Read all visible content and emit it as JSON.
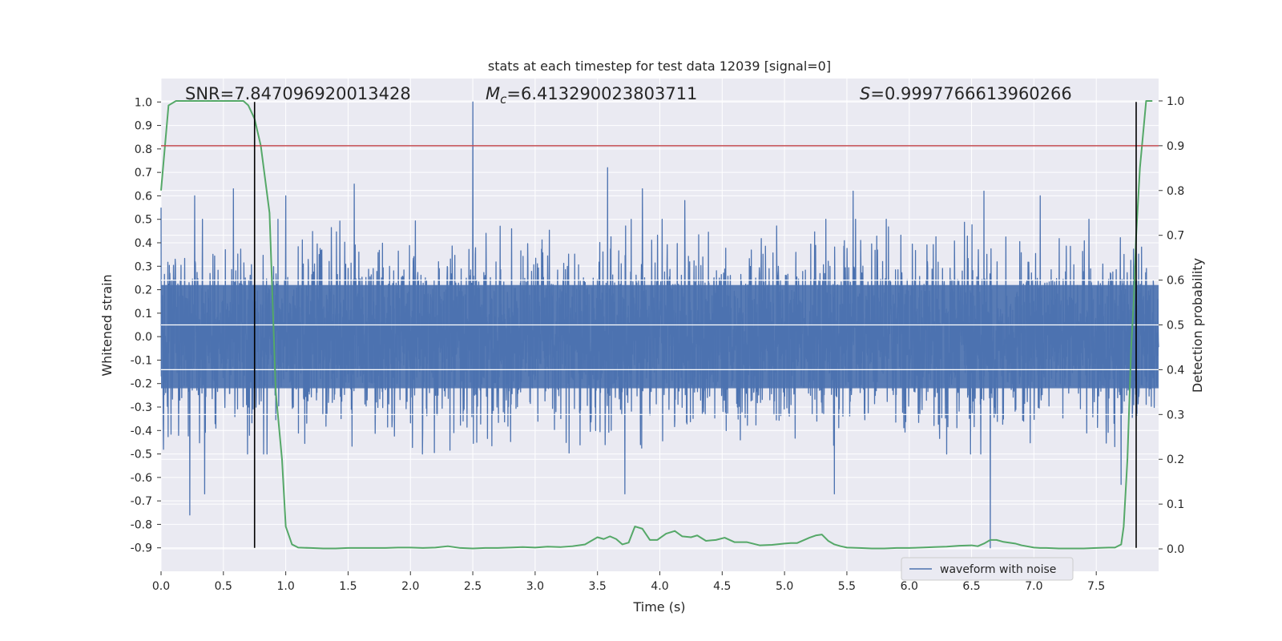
{
  "chart_data": {
    "type": "line",
    "title": "stats at each timestep for test data 12039 [signal=0]",
    "xlabel": "Time (s)",
    "ylabel": "Whitened strain",
    "y2label": "Detection probability",
    "xlim": [
      0.0,
      8.0
    ],
    "ylim": [
      -1.0,
      1.1
    ],
    "y2lim": [
      -0.05,
      1.05
    ],
    "xticks": [
      "0.0",
      "0.5",
      "1.0",
      "1.5",
      "2.0",
      "2.5",
      "3.0",
      "3.5",
      "4.0",
      "4.5",
      "5.0",
      "5.5",
      "6.0",
      "6.5",
      "7.0",
      "7.5"
    ],
    "yticks": [
      "-0.9",
      "-0.8",
      "-0.7",
      "-0.6",
      "-0.5",
      "-0.4",
      "-0.3",
      "-0.2",
      "-0.1",
      "0.0",
      "0.1",
      "0.2",
      "0.3",
      "0.4",
      "0.5",
      "0.6",
      "0.7",
      "0.8",
      "0.9",
      "1.0"
    ],
    "y2ticks": [
      "0.0",
      "0.1",
      "0.2",
      "0.3",
      "0.4",
      "0.5",
      "0.6",
      "0.7",
      "0.8",
      "0.9",
      "1.0"
    ],
    "grid": true,
    "legend_location": "lower-right",
    "annotations": {
      "snr": "SNR=7.847096920013428",
      "mc_symbol": "M",
      "mc_sub": "c",
      "mc_value": "=6.413290023803711",
      "s_symbol": "S",
      "s_value": "=0.9997766613960266"
    },
    "threshold_y2": 0.9,
    "vertical_lines_x": [
      0.75,
      7.82
    ],
    "series": [
      {
        "name": "waveform with noise",
        "axis": "left",
        "color": "#4c72b0",
        "kind": "noise",
        "n_samples": 4096,
        "core_amplitude": 0.22,
        "typical_extreme": 0.45,
        "peaks": [
          {
            "x": 0.0,
            "y": 0.55
          },
          {
            "x": 0.02,
            "y": -0.48
          },
          {
            "x": 0.23,
            "y": -0.76
          },
          {
            "x": 0.27,
            "y": 0.6
          },
          {
            "x": 0.35,
            "y": -0.67
          },
          {
            "x": 0.58,
            "y": 0.63
          },
          {
            "x": 1.0,
            "y": 0.6
          },
          {
            "x": 1.55,
            "y": 0.65
          },
          {
            "x": 2.5,
            "y": 1.0
          },
          {
            "x": 3.58,
            "y": 0.72
          },
          {
            "x": 3.72,
            "y": -0.67
          },
          {
            "x": 3.86,
            "y": 0.63
          },
          {
            "x": 4.2,
            "y": 0.58
          },
          {
            "x": 5.4,
            "y": -0.67
          },
          {
            "x": 5.55,
            "y": 0.62
          },
          {
            "x": 6.6,
            "y": 0.62
          },
          {
            "x": 6.65,
            "y": -0.9
          },
          {
            "x": 7.05,
            "y": 0.6
          },
          {
            "x": 7.7,
            "y": -0.63
          }
        ]
      },
      {
        "name": "detection probability",
        "axis": "right",
        "color": "#55a868",
        "x": [
          0.0,
          0.06,
          0.12,
          0.2,
          0.3,
          0.4,
          0.5,
          0.6,
          0.66,
          0.7,
          0.75,
          0.8,
          0.87,
          0.92,
          0.97,
          1.0,
          1.05,
          1.1,
          1.2,
          1.3,
          1.4,
          1.5,
          1.6,
          1.7,
          1.8,
          1.9,
          2.0,
          2.1,
          2.2,
          2.3,
          2.4,
          2.5,
          2.6,
          2.7,
          2.8,
          2.9,
          3.0,
          3.1,
          3.2,
          3.3,
          3.4,
          3.45,
          3.5,
          3.55,
          3.6,
          3.65,
          3.7,
          3.75,
          3.8,
          3.86,
          3.92,
          3.98,
          4.05,
          4.12,
          4.18,
          4.25,
          4.3,
          4.37,
          4.45,
          4.52,
          4.6,
          4.7,
          4.8,
          4.9,
          5.0,
          5.05,
          5.1,
          5.2,
          5.25,
          5.3,
          5.35,
          5.4,
          5.45,
          5.5,
          5.6,
          5.7,
          5.8,
          5.9,
          6.0,
          6.1,
          6.2,
          6.3,
          6.4,
          6.5,
          6.55,
          6.6,
          6.65,
          6.7,
          6.75,
          6.8,
          6.85,
          6.9,
          7.0,
          7.05,
          7.1,
          7.2,
          7.3,
          7.4,
          7.5,
          7.6,
          7.65,
          7.7,
          7.72,
          7.75,
          7.78,
          7.8,
          7.82,
          7.85,
          7.9,
          7.95
        ],
        "values": [
          0.8,
          0.99,
          1.0,
          1.0,
          1.0,
          1.0,
          1.0,
          1.0,
          1.0,
          0.99,
          0.96,
          0.9,
          0.75,
          0.35,
          0.2,
          0.05,
          0.01,
          0.003,
          0.002,
          0.001,
          0.001,
          0.002,
          0.002,
          0.002,
          0.002,
          0.003,
          0.003,
          0.002,
          0.003,
          0.006,
          0.002,
          0.001,
          0.002,
          0.002,
          0.003,
          0.004,
          0.003,
          0.005,
          0.004,
          0.006,
          0.01,
          0.018,
          0.026,
          0.022,
          0.028,
          0.022,
          0.01,
          0.014,
          0.05,
          0.045,
          0.02,
          0.02,
          0.034,
          0.04,
          0.028,
          0.026,
          0.03,
          0.018,
          0.02,
          0.025,
          0.015,
          0.015,
          0.008,
          0.009,
          0.012,
          0.013,
          0.013,
          0.025,
          0.03,
          0.032,
          0.018,
          0.01,
          0.006,
          0.003,
          0.002,
          0.001,
          0.001,
          0.002,
          0.002,
          0.003,
          0.004,
          0.005,
          0.007,
          0.008,
          0.006,
          0.012,
          0.02,
          0.02,
          0.016,
          0.014,
          0.012,
          0.008,
          0.003,
          0.002,
          0.002,
          0.001,
          0.001,
          0.001,
          0.002,
          0.003,
          0.003,
          0.01,
          0.05,
          0.2,
          0.45,
          0.55,
          0.7,
          0.85,
          1.0,
          1.0
        ]
      }
    ]
  }
}
